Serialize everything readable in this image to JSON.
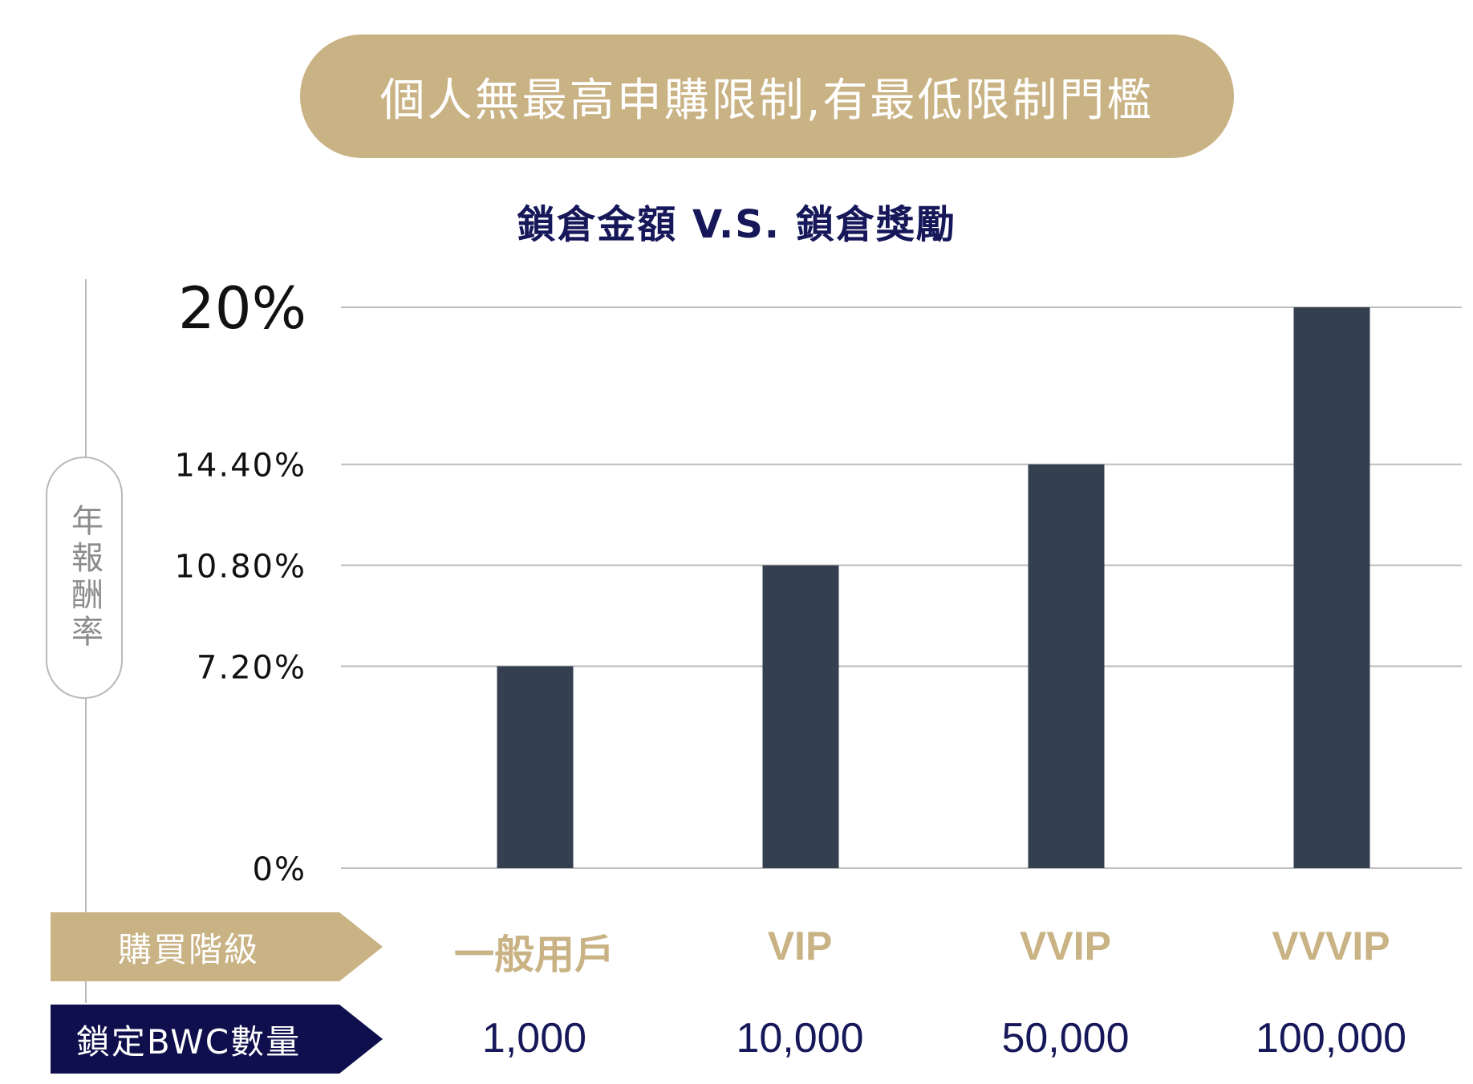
{
  "banner": {
    "text": "個人無最高申購限制,有最低限制門檻"
  },
  "colors": {
    "gold": "#c9b283",
    "navy": "#0e0f4c",
    "bar": "#343f50",
    "grid": "#bdbdbd"
  },
  "chart_data": {
    "type": "bar",
    "title": "鎖倉金額 V.S. 鎖倉獎勵",
    "ylabel": "年報酬率",
    "categories": [
      "一般用戶",
      "VIP",
      "VVIP",
      "VVVIP"
    ],
    "values": [
      7.2,
      10.8,
      14.4,
      20
    ],
    "yticks": [
      0,
      7.2,
      10.8,
      14.4,
      20
    ],
    "ytick_labels": [
      "0%",
      "7.20%",
      "10.80%",
      "14.40%",
      "20%"
    ],
    "ylim": [
      0,
      20
    ],
    "grid": true
  },
  "table": {
    "tier_header": "購買階級",
    "amount_header": "鎖定BWC數量",
    "tiers": [
      "一般用戶",
      "VIP",
      "VVIP",
      "VVVIP"
    ],
    "amounts": [
      "1,000",
      "10,000",
      "50,000",
      "100,000"
    ]
  }
}
